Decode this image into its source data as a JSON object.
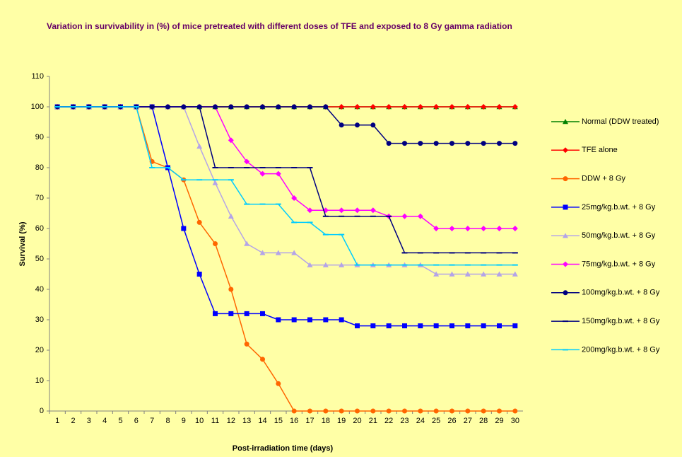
{
  "chart_data": {
    "type": "line",
    "title": "Variation in survivability in (%)  of mice pretreated with different doses of TFE and exposed to 8 Gy gamma radiation",
    "x_label": "Post-irradiation time (days)",
    "y_label": "Survival (%)",
    "categories": [
      "1",
      "2",
      "3",
      "4",
      "5",
      "6",
      "7",
      "8",
      "9",
      "10",
      "11",
      "12",
      "13",
      "14",
      "15",
      "16",
      "17",
      "18",
      "19",
      "20",
      "21",
      "22",
      "23",
      "24",
      "25",
      "26",
      "27",
      "28",
      "29",
      "30"
    ],
    "ylim": [
      0,
      110
    ],
    "yticks": [
      0,
      10,
      20,
      30,
      40,
      50,
      60,
      70,
      80,
      90,
      100,
      110
    ],
    "grid": false,
    "legend": "right",
    "series": [
      {
        "name": "Normal (DDW treated)",
        "color": "#008000",
        "marker": "triangle",
        "values": [
          100,
          100,
          100,
          100,
          100,
          100,
          100,
          100,
          100,
          100,
          100,
          100,
          100,
          100,
          100,
          100,
          100,
          100,
          100,
          100,
          100,
          100,
          100,
          100,
          100,
          100,
          100,
          100,
          100,
          100
        ]
      },
      {
        "name": "TFE alone",
        "color": "#ff0000",
        "marker": "diamond",
        "values": [
          100,
          100,
          100,
          100,
          100,
          100,
          100,
          100,
          100,
          100,
          100,
          100,
          100,
          100,
          100,
          100,
          100,
          100,
          100,
          100,
          100,
          100,
          100,
          100,
          100,
          100,
          100,
          100,
          100,
          100
        ]
      },
      {
        "name": "DDW +  8 Gy",
        "color": "#ff6600",
        "marker": "circle",
        "values": [
          100,
          100,
          100,
          100,
          100,
          100,
          82,
          80,
          76,
          62,
          55,
          40,
          22,
          17,
          9,
          0,
          0,
          0,
          0,
          0,
          0,
          0,
          0,
          0,
          0,
          0,
          0,
          0,
          0,
          0
        ]
      },
      {
        "name": "25mg/kg.b.wt. +  8 Gy",
        "color": "#0000ff",
        "marker": "square",
        "values": [
          100,
          100,
          100,
          100,
          100,
          100,
          100,
          80,
          60,
          45,
          32,
          32,
          32,
          32,
          30,
          30,
          30,
          30,
          30,
          28,
          28,
          28,
          28,
          28,
          28,
          28,
          28,
          28,
          28,
          28
        ]
      },
      {
        "name": "50mg/kg.b.wt. +  8 Gy",
        "color": "#b4a4e8",
        "marker": "triangle",
        "values": [
          100,
          100,
          100,
          100,
          100,
          100,
          100,
          100,
          100,
          87,
          75,
          64,
          55,
          52,
          52,
          52,
          48,
          48,
          48,
          48,
          48,
          48,
          48,
          48,
          45,
          45,
          45,
          45,
          45,
          45
        ]
      },
      {
        "name": "75mg/kg.b.wt. +  8 Gy",
        "color": "#ff00ff",
        "marker": "diamond",
        "values": [
          100,
          100,
          100,
          100,
          100,
          100,
          100,
          100,
          100,
          100,
          100,
          89,
          82,
          78,
          78,
          70,
          66,
          66,
          66,
          66,
          66,
          64,
          64,
          64,
          60,
          60,
          60,
          60,
          60,
          60
        ]
      },
      {
        "name": "100mg/kg.b.wt. +  8 Gy",
        "color": "#000080",
        "marker": "circle",
        "values": [
          100,
          100,
          100,
          100,
          100,
          100,
          100,
          100,
          100,
          100,
          100,
          100,
          100,
          100,
          100,
          100,
          100,
          100,
          94,
          94,
          94,
          88,
          88,
          88,
          88,
          88,
          88,
          88,
          88,
          88
        ]
      },
      {
        "name": "150mg/kg.b.wt. +  8 Gy",
        "color": "#000080",
        "marker": "dash",
        "values": [
          100,
          100,
          100,
          100,
          100,
          100,
          100,
          100,
          100,
          100,
          80,
          80,
          80,
          80,
          80,
          80,
          80,
          64,
          64,
          64,
          64,
          64,
          52,
          52,
          52,
          52,
          52,
          52,
          52,
          52
        ]
      },
      {
        "name": "200mg/kg.b.wt. +  8 Gy",
        "color": "#00ccff",
        "marker": "dash",
        "values": [
          100,
          100,
          100,
          100,
          100,
          100,
          80,
          80,
          76,
          76,
          76,
          76,
          68,
          68,
          68,
          62,
          62,
          58,
          58,
          48,
          48,
          48,
          48,
          48,
          48,
          48,
          48,
          48,
          48,
          48
        ]
      }
    ]
  }
}
